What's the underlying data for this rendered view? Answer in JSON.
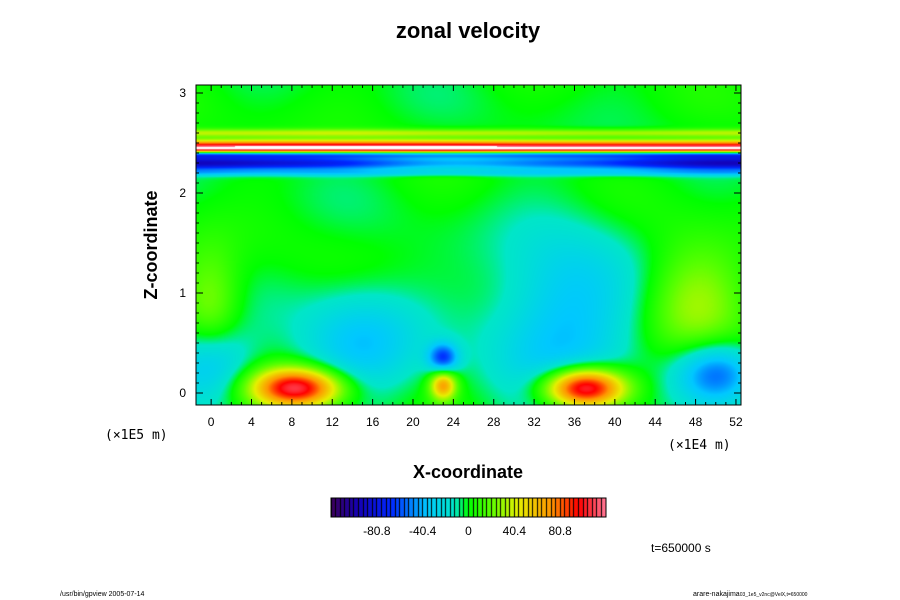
{
  "chart_data": {
    "type": "heatmap",
    "title": "zonal velocity",
    "xlabel": "X-coordinate",
    "ylabel": "Z-coordinate",
    "x_scale_note": "(×1E4 m)",
    "y_scale_note": "(×1E5 m)",
    "xlim": [
      -1.5,
      52.5
    ],
    "ylim": [
      -0.12,
      3.08
    ],
    "x_ticks": [
      "0",
      "4",
      "8",
      "12",
      "16",
      "20",
      "24",
      "28",
      "32",
      "36",
      "40",
      "44",
      "48",
      "52"
    ],
    "y_ticks": [
      "0",
      "1",
      "2",
      "3"
    ],
    "colorbar": {
      "min": -121.2,
      "max": 121.2,
      "ticks": [
        "-80.8",
        "-40.4",
        "0",
        "40.4",
        "80.8"
      ],
      "tick_values": [
        -80.8,
        -40.4,
        0,
        40.4,
        80.8
      ]
    },
    "time_label": "t=650000 s",
    "features": [
      {
        "kind": "band",
        "z": 2.47,
        "thickness": 0.06,
        "value": 95
      },
      {
        "kind": "band",
        "z": 2.44,
        "thickness": 0.03,
        "value": 55
      },
      {
        "kind": "band",
        "z": 2.3,
        "thickness": 0.08,
        "value": -90
      },
      {
        "kind": "band",
        "z": 2.38,
        "thickness": 0.03,
        "value": -40
      },
      {
        "kind": "band",
        "z": 2.6,
        "thickness": 0.04,
        "value": 35
      },
      {
        "kind": "band",
        "z": 2.2,
        "thickness": 0.03,
        "value": -20
      },
      {
        "kind": "blob",
        "x": 8.5,
        "z": 0.05,
        "rx": 4.5,
        "rz": 0.2,
        "value": 110
      },
      {
        "kind": "blob",
        "x": 37,
        "z": 0.05,
        "rx": 4,
        "rz": 0.2,
        "value": 125
      },
      {
        "kind": "blob",
        "x": 23,
        "z": 0.08,
        "rx": 1.3,
        "rz": 0.15,
        "value": 70
      },
      {
        "kind": "blob",
        "x": 0,
        "z": 0.3,
        "rx": 4,
        "rz": 0.4,
        "value": -45
      },
      {
        "kind": "blob",
        "x": 15,
        "z": 0.5,
        "rx": 6,
        "rz": 0.55,
        "value": -35
      },
      {
        "kind": "blob",
        "x": 35,
        "z": 0.7,
        "rx": 7,
        "rz": 0.9,
        "value": -40
      },
      {
        "kind": "blob",
        "x": 50,
        "z": 0.2,
        "rx": 4,
        "rz": 0.3,
        "value": -55
      },
      {
        "kind": "blob",
        "x": 23,
        "z": 0.35,
        "rx": 1.5,
        "rz": 0.15,
        "value": -60
      },
      {
        "kind": "blob",
        "x": 0,
        "z": 0.8,
        "rx": 3,
        "rz": 0.6,
        "value": 30
      },
      {
        "kind": "blob",
        "x": 48,
        "z": 0.9,
        "rx": 5,
        "rz": 0.6,
        "value": 30
      }
    ]
  },
  "footer": {
    "left": "/usr/bin/gpview 2005-07-14",
    "right_main": "arare-nakajima",
    "right_small": "03_1e5_v2nc@VelX,t=650000"
  },
  "colors": {
    "background": "#ffffff",
    "frame": "#000000"
  }
}
